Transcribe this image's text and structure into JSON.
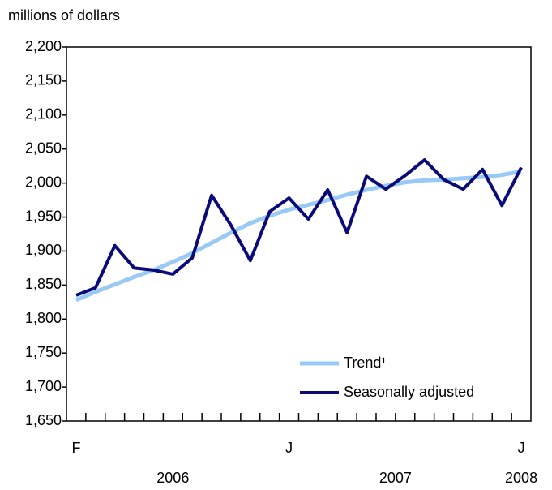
{
  "chart_data": {
    "type": "line",
    "y_axis_label": "millions of dollars",
    "categories": [
      "F",
      null,
      null,
      null,
      null,
      null,
      null,
      null,
      null,
      null,
      null,
      "J",
      null,
      null,
      null,
      null,
      null,
      null,
      null,
      null,
      null,
      null,
      null,
      "J"
    ],
    "annotations": [
      "2006",
      "2007",
      "2008"
    ],
    "series": [
      {
        "name": "Trend¹",
        "color": "#99c9f5",
        "values": [
          1828,
          1840,
          1851,
          1862,
          1872,
          1884,
          1897,
          1912,
          1927,
          1941,
          1952,
          1961,
          1968,
          1975,
          1983,
          1990,
          1996,
          2001,
          2004,
          2005,
          2007,
          2009,
          2012,
          2017
        ]
      },
      {
        "name": "Seasonally adjusted",
        "color": "#0a0a78",
        "values": [
          1835,
          1846,
          1908,
          1875,
          1872,
          1866,
          1890,
          1982,
          1938,
          1886,
          1958,
          1978,
          1947,
          1990,
          1927,
          2010,
          1991,
          2011,
          2034,
          2005,
          1991,
          2020,
          1967,
          2023
        ]
      }
    ],
    "ylim": [
      1650,
      2200
    ],
    "yticks": [
      {
        "value": 1650,
        "label": "1,650"
      },
      {
        "value": 1700,
        "label": "1,700"
      },
      {
        "value": 1750,
        "label": "1,750"
      },
      {
        "value": 1800,
        "label": "1,800"
      },
      {
        "value": 1850,
        "label": "1,850"
      },
      {
        "value": 1900,
        "label": "1,900"
      },
      {
        "value": 1950,
        "label": "1,950"
      },
      {
        "value": 2000,
        "label": "2,000"
      },
      {
        "value": 2050,
        "label": "2,050"
      },
      {
        "value": 2100,
        "label": "2,100"
      },
      {
        "value": 2150,
        "label": "2,150"
      },
      {
        "value": 2200,
        "label": "2,200"
      }
    ],
    "grid": false,
    "legend": "lower right"
  }
}
